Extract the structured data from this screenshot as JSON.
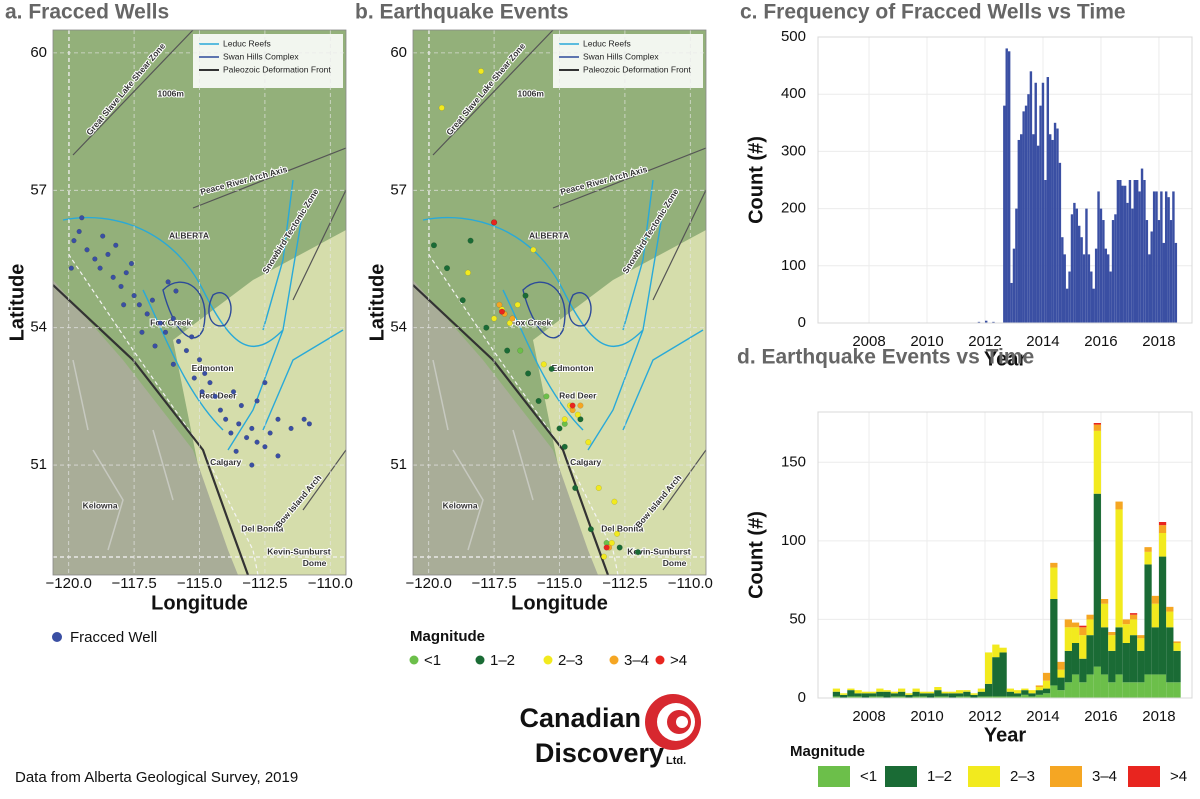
{
  "chart_data": [
    {
      "type": "map",
      "title": "a. Fracced Wells",
      "xlabel": "Longitude",
      "ylabel": "Latitude",
      "xlim": [
        -120.6,
        -109.4
      ],
      "ylim": [
        48.6,
        60.5
      ],
      "xticks": [
        {
          "value": -120,
          "label": "−120.0"
        },
        {
          "value": -117.5,
          "label": "−117.5"
        },
        {
          "value": -115,
          "label": "−115.0"
        },
        {
          "value": -112.5,
          "label": "−112.5"
        },
        {
          "value": -110,
          "label": "−110.0"
        }
      ],
      "yticks": [
        51,
        54,
        57,
        60
      ],
      "grid": true,
      "map_legend": [
        {
          "name": "Leduc Reefs",
          "color": "#29a9d8"
        },
        {
          "name": "Swan Hills Complex",
          "color": "#2c4a9a"
        },
        {
          "name": "Paleozoic Deformation Front",
          "color": "#333333"
        }
      ],
      "annotations": [
        {
          "text": "ALBERTA",
          "x": -115.4,
          "y": 56.0
        },
        {
          "text": "Fox Creek",
          "x": -116.1,
          "y": 54.1
        },
        {
          "text": "Edmonton",
          "x": -114.5,
          "y": 53.1
        },
        {
          "text": "Red Deer",
          "x": -114.3,
          "y": 52.5
        },
        {
          "text": "Calgary",
          "x": -114.0,
          "y": 51.05
        },
        {
          "text": "Kelowna",
          "x": -118.8,
          "y": 50.1
        },
        {
          "text": "Del Bonita",
          "x": -112.6,
          "y": 49.6
        },
        {
          "text": "Kevin-Sunburst",
          "x": -111.2,
          "y": 49.1
        },
        {
          "text": "Dome",
          "x": -110.6,
          "y": 48.85
        },
        {
          "text": "Bow Island Arch",
          "x": -111.2,
          "y": 50.2
        },
        {
          "text": "Peace River Arch Axis",
          "x": -113.3,
          "y": 57.2
        },
        {
          "text": "Great Slave Lake Shear Zone",
          "x": -117.8,
          "y": 59.2
        },
        {
          "text": "Snowbird Tectonic Zone",
          "x": -111.5,
          "y": 56.1
        },
        {
          "text": "1006m",
          "x": -116.1,
          "y": 59.1
        }
      ],
      "series": [
        {
          "name": "Fracced Well",
          "color": "#3a4fa3",
          "x": [
            -119.8,
            -119.6,
            -119.3,
            -119.0,
            -118.8,
            -118.5,
            -118.3,
            -118.0,
            -117.8,
            -117.5,
            -117.3,
            -117.0,
            -116.8,
            -116.5,
            -116.3,
            -116.0,
            -115.8,
            -115.5,
            -115.3,
            -115.0,
            -114.8,
            -114.6,
            -114.4,
            -114.2,
            -114.0,
            -113.8,
            -113.5,
            -113.2,
            -113.0,
            -112.8,
            -112.5,
            -112.3,
            -112.0,
            -111.5,
            -111.0,
            -110.8,
            -113.7,
            -113.4,
            -112.8,
            -112.5,
            -118.2,
            -117.6,
            -119.5,
            -119.9,
            -116.2,
            -115.9,
            -117.2,
            -116.7,
            -114.9,
            -113.6,
            -118.7,
            -117.9,
            -116.0,
            -115.2,
            -112.0,
            -113.0
          ],
          "y": [
            55.9,
            56.1,
            55.7,
            55.5,
            55.3,
            55.6,
            55.1,
            54.9,
            55.2,
            54.7,
            54.5,
            54.3,
            54.6,
            54.1,
            53.9,
            54.2,
            53.7,
            53.5,
            53.8,
            53.3,
            53.0,
            52.8,
            52.5,
            52.2,
            52.0,
            51.7,
            51.9,
            51.6,
            51.8,
            51.5,
            51.4,
            51.7,
            52.0,
            51.8,
            52.0,
            51.9,
            52.6,
            52.3,
            52.4,
            52.8,
            55.8,
            55.4,
            56.4,
            55.3,
            55.0,
            54.8,
            53.9,
            53.6,
            52.6,
            51.3,
            56.0,
            54.5,
            53.2,
            52.9,
            51.2,
            51.0
          ]
        }
      ]
    },
    {
      "type": "map",
      "title": "b. Earthquake Events",
      "xlabel": "Longitude",
      "ylabel": "Latitude",
      "xlim": [
        -120.6,
        -109.4
      ],
      "ylim": [
        48.6,
        60.5
      ],
      "xticks": [
        {
          "value": -120,
          "label": "−120.0"
        },
        {
          "value": -117.5,
          "label": "−117.5"
        },
        {
          "value": -115,
          "label": "−115.0"
        },
        {
          "value": -112.5,
          "label": "−112.5"
        },
        {
          "value": -110,
          "label": "−110.0"
        }
      ],
      "yticks": [
        51,
        54,
        57,
        60
      ],
      "grid": true,
      "legend_title": "Magnitude",
      "map_legend": [
        {
          "name": "Leduc Reefs",
          "color": "#29a9d8"
        },
        {
          "name": "Swan Hills Complex",
          "color": "#2c4a9a"
        },
        {
          "name": "Paleozoic Deformation Front",
          "color": "#333333"
        }
      ],
      "annotations": [
        {
          "text": "ALBERTA",
          "x": -115.4,
          "y": 56.0
        },
        {
          "text": "Fox Creek",
          "x": -116.1,
          "y": 54.1
        },
        {
          "text": "Edmonton",
          "x": -114.5,
          "y": 53.1
        },
        {
          "text": "Red Deer",
          "x": -114.3,
          "y": 52.5
        },
        {
          "text": "Calgary",
          "x": -114.0,
          "y": 51.05
        },
        {
          "text": "Kelowna",
          "x": -118.8,
          "y": 50.1
        },
        {
          "text": "Del Bonita",
          "x": -112.6,
          "y": 49.6
        },
        {
          "text": "Kevin-Sunburst",
          "x": -111.2,
          "y": 49.1
        },
        {
          "text": "Dome",
          "x": -110.6,
          "y": 48.85
        },
        {
          "text": "Bow Island Arch",
          "x": -111.2,
          "y": 50.2
        },
        {
          "text": "Peace River Arch Axis",
          "x": -113.3,
          "y": 57.2
        },
        {
          "text": "Great Slave Lake Shear Zone",
          "x": -117.8,
          "y": 59.2
        },
        {
          "text": "Snowbird Tectonic Zone",
          "x": -111.5,
          "y": 56.1
        },
        {
          "text": "1006m",
          "x": -116.1,
          "y": 59.1
        }
      ],
      "series": [
        {
          "name": "<1",
          "color": "#6cbf4a",
          "x": [
            -116.5,
            -115.5,
            -113.2,
            -114.8
          ],
          "y": [
            53.5,
            52.5,
            49.3,
            51.9
          ]
        },
        {
          "name": "1–2",
          "color": "#1a6b35",
          "x": [
            -119.8,
            -119.3,
            -118.7,
            -117.8,
            -117.0,
            -116.2,
            -115.8,
            -115.0,
            -114.8,
            -114.4,
            -113.8,
            -112.7,
            -112.0,
            -117.5,
            -118.4,
            -116.3,
            -115.3,
            -114.2
          ],
          "y": [
            55.8,
            55.3,
            54.6,
            54.0,
            53.5,
            53.0,
            52.4,
            51.8,
            51.4,
            50.5,
            49.6,
            49.2,
            49.1,
            56.3,
            55.9,
            54.7,
            53.1,
            52.0
          ]
        },
        {
          "name": "2–3",
          "color": "#f2ea1e",
          "x": [
            -117.2,
            -116.9,
            -117.5,
            -116.6,
            -114.6,
            -114.3,
            -114.8,
            -115.6,
            -113.0,
            -113.3,
            -112.8,
            -113.5,
            -119.5,
            -118.0,
            -116.0,
            -113.9,
            -112.9,
            -118.5
          ],
          "y": [
            54.4,
            54.1,
            54.2,
            54.5,
            52.3,
            52.1,
            52.0,
            53.2,
            49.3,
            49.0,
            49.5,
            50.5,
            58.8,
            59.6,
            55.7,
            51.5,
            50.2,
            55.2
          ]
        },
        {
          "name": "3–4",
          "color": "#f5a623",
          "x": [
            -117.1,
            -117.3,
            -116.8,
            -114.5,
            -114.2,
            -113.1
          ],
          "y": [
            54.3,
            54.5,
            54.2,
            52.2,
            52.3,
            49.2
          ]
        },
        {
          "name": ">4",
          "color": "#e8251f",
          "x": [
            -117.2,
            -117.5,
            -114.5,
            -113.2
          ],
          "y": [
            54.35,
            56.3,
            52.3,
            49.2
          ]
        }
      ]
    },
    {
      "type": "bar",
      "title": "c. Frequency of Fracced Wells vs Time",
      "xlabel": "Year",
      "ylabel": "Count (#)",
      "xlim": [
        2006.24,
        2019.14
      ],
      "ylim": [
        0,
        500
      ],
      "xticks": [
        2008,
        2010,
        2012,
        2014,
        2016,
        2018
      ],
      "yticks": [
        0,
        100,
        200,
        300,
        400,
        500
      ],
      "grid": true,
      "bar_width": 0.0833,
      "color": "#3a4fa3",
      "x": [
        2011.75,
        2012.0,
        2012.25,
        2012.625,
        2012.708,
        2012.792,
        2012.875,
        2012.958,
        2013.042,
        2013.125,
        2013.208,
        2013.292,
        2013.375,
        2013.458,
        2013.542,
        2013.625,
        2013.708,
        2013.792,
        2013.875,
        2013.958,
        2014.042,
        2014.125,
        2014.208,
        2014.292,
        2014.375,
        2014.458,
        2014.542,
        2014.625,
        2014.708,
        2014.792,
        2014.875,
        2014.958,
        2015.042,
        2015.125,
        2015.208,
        2015.292,
        2015.375,
        2015.458,
        2015.542,
        2015.625,
        2015.708,
        2015.792,
        2015.875,
        2015.958,
        2016.042,
        2016.125,
        2016.208,
        2016.292,
        2016.375,
        2016.458,
        2016.542,
        2016.625,
        2016.708,
        2016.792,
        2016.875,
        2016.958,
        2017.042,
        2017.125,
        2017.208,
        2017.292,
        2017.375,
        2017.458,
        2017.542,
        2017.625,
        2017.708,
        2017.792,
        2017.875,
        2017.958,
        2018.042,
        2018.125,
        2018.208,
        2018.292,
        2018.375,
        2018.458,
        2018.542
      ],
      "values": [
        2,
        4,
        2,
        380,
        480,
        475,
        70,
        130,
        200,
        320,
        330,
        370,
        380,
        400,
        440,
        330,
        420,
        310,
        380,
        420,
        250,
        430,
        330,
        320,
        350,
        340,
        280,
        150,
        120,
        60,
        90,
        190,
        210,
        200,
        170,
        150,
        120,
        200,
        120,
        90,
        60,
        130,
        230,
        200,
        180,
        130,
        120,
        90,
        180,
        190,
        250,
        250,
        240,
        240,
        210,
        250,
        200,
        250,
        250,
        230,
        270,
        250,
        180,
        120,
        160,
        230,
        230,
        180,
        230,
        140,
        230,
        220,
        180,
        230,
        140
      ]
    },
    {
      "type": "stacked-bar",
      "title": "d. Earthquake Events vs Time",
      "xlabel": "Year",
      "ylabel": "Count (#)",
      "xlim": [
        2006.24,
        2019.14
      ],
      "ylim": [
        0,
        182
      ],
      "xticks": [
        2008,
        2010,
        2012,
        2014,
        2016,
        2018
      ],
      "yticks": [
        0,
        50,
        100,
        150
      ],
      "grid": true,
      "bar_width": 0.25,
      "legend_title": "Magnitude",
      "x": [
        2006.75,
        2007.0,
        2007.25,
        2007.5,
        2007.75,
        2008.0,
        2008.25,
        2008.5,
        2008.75,
        2009.0,
        2009.25,
        2009.5,
        2009.75,
        2010.0,
        2010.25,
        2010.5,
        2010.75,
        2011.0,
        2011.25,
        2011.5,
        2011.75,
        2012.0,
        2012.25,
        2012.5,
        2012.75,
        2013.0,
        2013.25,
        2013.5,
        2013.75,
        2014.0,
        2014.25,
        2014.5,
        2014.75,
        2015.0,
        2015.25,
        2015.5,
        2015.75,
        2016.0,
        2016.25,
        2016.5,
        2016.75,
        2017.0,
        2017.25,
        2017.5,
        2017.75,
        2018.0,
        2018.25,
        2018.5
      ],
      "series": [
        {
          "name": "<1",
          "color": "#6cbf4a",
          "values": [
            1,
            0,
            1,
            1,
            0,
            1,
            1,
            0,
            1,
            1,
            0,
            1,
            1,
            0,
            1,
            1,
            0,
            1,
            1,
            0,
            1,
            1,
            1,
            1,
            1,
            1,
            2,
            1,
            2,
            3,
            8,
            5,
            10,
            15,
            10,
            15,
            20,
            15,
            10,
            15,
            10,
            10,
            10,
            15,
            15,
            15,
            10,
            10
          ]
        },
        {
          "name": "1–2",
          "color": "#1a6b35",
          "values": [
            3,
            2,
            4,
            2,
            3,
            2,
            3,
            4,
            2,
            3,
            2,
            3,
            2,
            3,
            4,
            2,
            3,
            2,
            3,
            2,
            3,
            8,
            25,
            28,
            3,
            2,
            3,
            2,
            3,
            3,
            55,
            8,
            20,
            20,
            15,
            25,
            110,
            30,
            20,
            30,
            25,
            30,
            20,
            70,
            30,
            75,
            35,
            20
          ]
        },
        {
          "name": "2–3",
          "color": "#f2ea1e",
          "values": [
            2,
            1,
            1,
            2,
            1,
            1,
            2,
            1,
            1,
            2,
            1,
            2,
            1,
            1,
            2,
            1,
            1,
            2,
            1,
            1,
            2,
            20,
            8,
            3,
            2,
            2,
            1,
            2,
            2,
            5,
            20,
            5,
            15,
            10,
            15,
            10,
            40,
            15,
            10,
            75,
            12,
            10,
            8,
            8,
            15,
            15,
            10,
            5
          ]
        },
        {
          "name": "3–4",
          "color": "#f5a623",
          "values": [
            0,
            0,
            0,
            0,
            0,
            0,
            0,
            0,
            0,
            0,
            0,
            0,
            0,
            0,
            0,
            0,
            0,
            0,
            0,
            0,
            0,
            0,
            0,
            0,
            0,
            0,
            0,
            0,
            1,
            5,
            3,
            5,
            5,
            3,
            5,
            3,
            4,
            3,
            2,
            5,
            3,
            3,
            2,
            3,
            5,
            5,
            3,
            1
          ]
        },
        {
          "name": ">4",
          "color": "#e8251f",
          "values": [
            0,
            0,
            0,
            0,
            0,
            0,
            0,
            0,
            0,
            0,
            0,
            0,
            0,
            0,
            0,
            0,
            0,
            0,
            0,
            0,
            0,
            0,
            0,
            0,
            0,
            0,
            0,
            0,
            0,
            0,
            0,
            0,
            0,
            0,
            1,
            0,
            1,
            0,
            0,
            0,
            0,
            1,
            0,
            0,
            0,
            2,
            0,
            0
          ]
        }
      ]
    }
  ],
  "logo": {
    "name": "Canadian",
    "line2": "Discovery",
    "suffix": "Ltd."
  },
  "source": "Data from Alberta Geological Survey, 2019"
}
